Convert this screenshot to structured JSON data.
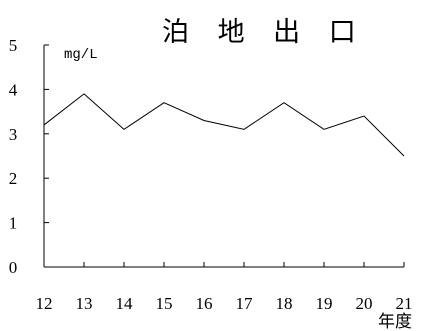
{
  "chart_data": {
    "type": "line",
    "title": "泊 地 出 口",
    "ylabel": "mg/L",
    "xlabel": "年度",
    "x": [
      12,
      13,
      14,
      15,
      16,
      17,
      18,
      19,
      20,
      21
    ],
    "series": [
      {
        "values": [
          3.2,
          3.9,
          3.1,
          3.7,
          3.3,
          3.1,
          3.7,
          3.1,
          3.4,
          2.5
        ]
      }
    ],
    "ylim": [
      0,
      5
    ],
    "yticks": [
      0,
      1,
      2,
      3,
      4,
      5
    ],
    "grid": false,
    "line_color": "#000000"
  }
}
